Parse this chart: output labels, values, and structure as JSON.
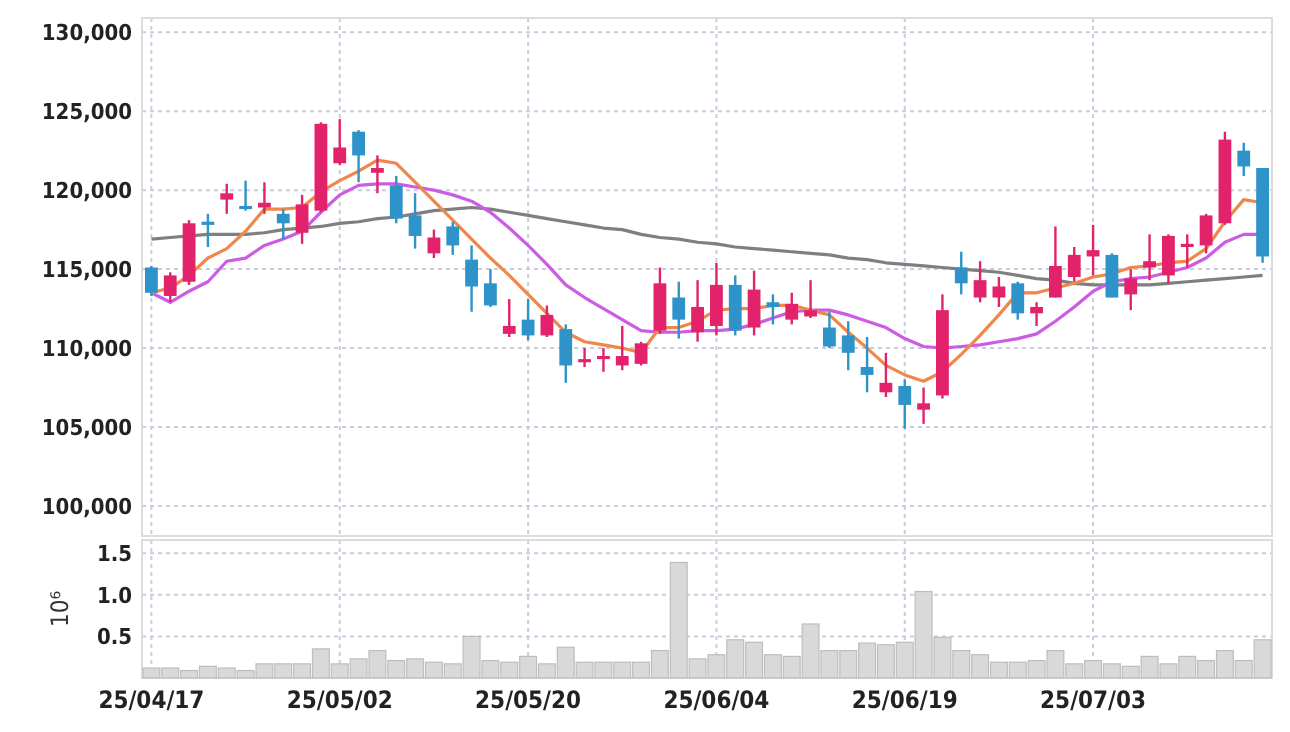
{
  "chart_data": [
    {
      "type": "candlestick",
      "categories": [
        null,
        null,
        null,
        null,
        null,
        null,
        null,
        null,
        null,
        null,
        null,
        null,
        null,
        null,
        null,
        null,
        null,
        null,
        null,
        null,
        null,
        null,
        null,
        null,
        null,
        null,
        null,
        null,
        null,
        null,
        null,
        null,
        null,
        null,
        null,
        null,
        null,
        null,
        null,
        null,
        null,
        null,
        null,
        null,
        null,
        null,
        null,
        null,
        null,
        null,
        null,
        null,
        null,
        null,
        null,
        null,
        null,
        null,
        null,
        null
      ],
      "ohlc": [
        [
          115100,
          115200,
          113300,
          113500
        ],
        [
          113300,
          114800,
          112900,
          114600
        ],
        [
          114200,
          118100,
          114000,
          117900
        ],
        [
          118000,
          118500,
          116400,
          117800
        ],
        [
          119400,
          120400,
          118500,
          119800
        ],
        [
          119000,
          120600,
          118700,
          118800
        ],
        [
          118900,
          120500,
          118500,
          119200
        ],
        [
          118500,
          118800,
          116900,
          117900
        ],
        [
          117300,
          119700,
          116600,
          119100
        ],
        [
          118700,
          124300,
          118600,
          124200
        ],
        [
          121700,
          124500,
          121600,
          122700
        ],
        [
          123700,
          123800,
          120500,
          122200
        ],
        [
          121100,
          122200,
          119800,
          121400
        ],
        [
          120300,
          120900,
          117900,
          118200
        ],
        [
          118400,
          119800,
          116300,
          117100
        ],
        [
          116000,
          117500,
          115700,
          117000
        ],
        [
          117700,
          118000,
          115900,
          116500
        ],
        [
          115600,
          116500,
          112300,
          113900
        ],
        [
          114100,
          115000,
          112600,
          112700
        ],
        [
          110900,
          113100,
          110700,
          111400
        ],
        [
          111800,
          113100,
          110500,
          110800
        ],
        [
          110800,
          112700,
          110700,
          112100
        ],
        [
          111200,
          111500,
          107800,
          108900
        ],
        [
          109100,
          110000,
          108800,
          109300
        ],
        [
          109300,
          110000,
          108500,
          109500
        ],
        [
          108900,
          111400,
          108600,
          109500
        ],
        [
          109000,
          110400,
          108900,
          110300
        ],
        [
          111100,
          115100,
          110900,
          114100
        ],
        [
          113200,
          114200,
          110600,
          111800
        ],
        [
          111000,
          114300,
          110400,
          112600
        ],
        [
          111400,
          115400,
          110800,
          114000
        ],
        [
          114000,
          114600,
          110800,
          111100
        ],
        [
          111300,
          114900,
          110800,
          113700
        ],
        [
          112900,
          113400,
          111500,
          112600
        ],
        [
          111800,
          113500,
          111500,
          112800
        ],
        [
          112000,
          114300,
          111900,
          112400
        ],
        [
          111300,
          112300,
          110000,
          110100
        ],
        [
          110800,
          111700,
          108600,
          109700
        ],
        [
          108800,
          110700,
          107200,
          108300
        ],
        [
          107200,
          109700,
          106900,
          107800
        ],
        [
          107600,
          108000,
          104900,
          106400
        ],
        [
          106100,
          107500,
          105200,
          106500
        ],
        [
          107000,
          113400,
          106800,
          112400
        ],
        [
          115100,
          116100,
          113400,
          114100
        ],
        [
          113200,
          115500,
          112900,
          114300
        ],
        [
          113200,
          114500,
          112600,
          113900
        ],
        [
          114100,
          114200,
          111800,
          112200
        ],
        [
          112200,
          112900,
          111400,
          112600
        ],
        [
          113200,
          117700,
          113200,
          115200
        ],
        [
          114500,
          116400,
          114200,
          115900
        ],
        [
          115800,
          117800,
          114600,
          116200
        ],
        [
          115900,
          116000,
          113200,
          113200
        ],
        [
          113400,
          115000,
          112400,
          114400
        ],
        [
          115100,
          117200,
          114300,
          115500
        ],
        [
          114600,
          117200,
          114100,
          117100
        ],
        [
          116400,
          117200,
          115100,
          116600
        ],
        [
          116500,
          118500,
          116000,
          118400
        ],
        [
          117900,
          123700,
          117800,
          123200
        ],
        [
          122500,
          123000,
          120900,
          121500
        ],
        [
          121400,
          121400,
          115400,
          115800
        ]
      ],
      "colors": [
        "#2d93c8",
        "#e2236b",
        "#e2236b",
        "#2d93c8",
        "#e2236b",
        "#2d93c8",
        "#e2236b",
        "#2d93c8",
        "#e2236b",
        "#e2236b",
        "#e2236b",
        "#2d93c8",
        "#e2236b",
        "#2d93c8",
        "#2d93c8",
        "#e2236b",
        "#2d93c8",
        "#2d93c8",
        "#2d93c8",
        "#e2236b",
        "#2d93c8",
        "#e2236b",
        "#2d93c8",
        "#e2236b",
        "#e2236b",
        "#e2236b",
        "#e2236b",
        "#e2236b",
        "#2d93c8",
        "#e2236b",
        "#e2236b",
        "#2d93c8",
        "#e2236b",
        "#2d93c8",
        "#e2236b",
        "#e2236b",
        "#2d93c8",
        "#2d93c8",
        "#2d93c8",
        "#e2236b",
        "#2d93c8",
        "#e2236b",
        "#e2236b",
        "#2d93c8",
        "#e2236b",
        "#e2236b",
        "#2d93c8",
        "#e2236b",
        "#e2236b",
        "#e2236b",
        "#e2236b",
        "#2d93c8",
        "#e2236b",
        "#e2236b",
        "#e2236b",
        "#e2236b",
        "#e2236b",
        "#e2236b",
        "#2d93c8",
        "#2d93c8"
      ],
      "series": [
        {
          "type": "line",
          "color": "#7f7f7f",
          "values": [
            116900,
            117000,
            117100,
            117200,
            117200,
            117200,
            117300,
            117500,
            117600,
            117700,
            117900,
            118000,
            118200,
            118300,
            118500,
            118700,
            118800,
            118900,
            118800,
            118600,
            118400,
            118200,
            118000,
            117800,
            117600,
            117500,
            117200,
            117000,
            116900,
            116700,
            116600,
            116400,
            116300,
            116200,
            116100,
            116000,
            115900,
            115700,
            115600,
            115400,
            115300,
            115200,
            115100,
            115000,
            114900,
            114800,
            114600,
            114400,
            114300,
            114100,
            114000,
            114000,
            114000,
            114000,
            114100,
            114200,
            114300,
            114400,
            114500,
            114600
          ]
        },
        {
          "type": "line",
          "color": "#cc5ce6",
          "values": [
            113500,
            112900,
            113600,
            114200,
            115500,
            115700,
            116500,
            116900,
            117400,
            118600,
            119700,
            120300,
            120400,
            120400,
            120200,
            120000,
            119700,
            119300,
            118600,
            117600,
            116500,
            115300,
            114000,
            113200,
            112500,
            111800,
            111100,
            111000,
            111000,
            111100,
            111100,
            111200,
            111500,
            111900,
            112300,
            112400,
            112400,
            112100,
            111700,
            111300,
            110600,
            110100,
            110000,
            110100,
            110200,
            110400,
            110600,
            110900,
            111700,
            112600,
            113600,
            114200,
            114400,
            114500,
            114800,
            115100,
            115700,
            116700,
            117200,
            117200
          ]
        },
        {
          "type": "line",
          "color": "#f0874a",
          "values": [
            113500,
            113800,
            114600,
            115700,
            116300,
            117400,
            118800,
            118800,
            118900,
            119900,
            120600,
            121200,
            121900,
            121700,
            120500,
            119300,
            118100,
            116900,
            115700,
            114600,
            113400,
            112200,
            111000,
            110400,
            110200,
            110000,
            109700,
            111300,
            111300,
            111700,
            112400,
            112500,
            112500,
            112700,
            112700,
            112400,
            112100,
            111000,
            110000,
            108900,
            108300,
            107900,
            108500,
            109600,
            110800,
            112100,
            113500,
            113500,
            113800,
            114100,
            114500,
            114700,
            115100,
            115200,
            115400,
            115500,
            116300,
            118000,
            119400,
            119200
          ]
        }
      ],
      "ylim": [
        98100,
        130900
      ],
      "yticks": [
        {
          "value": 100000,
          "label": "100,000"
        },
        {
          "value": 105000,
          "label": "105,000"
        },
        {
          "value": 110000,
          "label": "110,000"
        },
        {
          "value": 115000,
          "label": "115,000"
        },
        {
          "value": 120000,
          "label": "120,000"
        },
        {
          "value": 125000,
          "label": "125,000"
        },
        {
          "value": 130000,
          "label": "130,000"
        }
      ],
      "grid": true,
      "tick_labels": "y"
    },
    {
      "type": "bar",
      "categories": [
        "25/04/17",
        null,
        null,
        null,
        null,
        null,
        null,
        null,
        null,
        null,
        "25/05/02",
        null,
        null,
        null,
        null,
        null,
        null,
        null,
        null,
        null,
        "25/05/20",
        null,
        null,
        null,
        null,
        null,
        null,
        null,
        null,
        null,
        "25/06/04",
        null,
        null,
        null,
        null,
        null,
        null,
        null,
        null,
        null,
        "25/06/19",
        null,
        null,
        null,
        null,
        null,
        null,
        null,
        null,
        null,
        "25/07/03",
        null,
        null,
        null,
        null,
        null,
        null,
        null,
        null,
        null
      ],
      "values": [
        0.12,
        0.12,
        0.09,
        0.14,
        0.12,
        0.09,
        0.17,
        0.17,
        0.17,
        0.35,
        0.17,
        0.23,
        0.33,
        0.21,
        0.23,
        0.19,
        0.17,
        0.5,
        0.21,
        0.19,
        0.26,
        0.17,
        0.37,
        0.19,
        0.19,
        0.19,
        0.19,
        0.33,
        1.39,
        0.23,
        0.28,
        0.46,
        0.43,
        0.28,
        0.26,
        0.65,
        0.33,
        0.33,
        0.42,
        0.4,
        0.43,
        1.04,
        0.49,
        0.33,
        0.28,
        0.19,
        0.19,
        0.21,
        0.33,
        0.17,
        0.21,
        0.17,
        0.14,
        0.26,
        0.17,
        0.26,
        0.21,
        0.33,
        0.21,
        0.46
      ],
      "color": "#d9d9d9",
      "ylabel": "10⁶",
      "ylim": [
        0,
        1.66
      ],
      "yticks": [
        0.5,
        {
          "value": 1.0,
          "label": "1.0"
        },
        1.5
      ],
      "grid": true
    }
  ]
}
